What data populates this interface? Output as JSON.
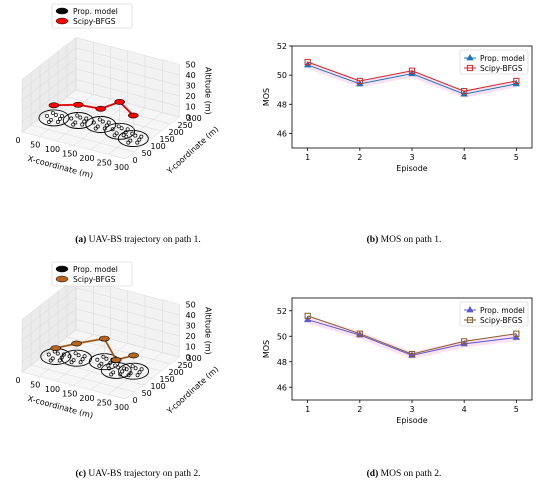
{
  "chart_data": [
    {
      "type": "scatter",
      "projection": "3d",
      "caption_tag": "(a)",
      "caption": "UAV-BS trajectory on path 1.",
      "xlabel": "X-coordinate (m)",
      "ylabel": "Y-coordinate (m)",
      "zlabel": "Altitude (m)",
      "xticks": [
        "0",
        "50",
        "100",
        "150",
        "200",
        "250",
        "300"
      ],
      "yticks": [
        "0",
        "50",
        "100",
        "150",
        "200",
        "250",
        "300"
      ],
      "zticks": [
        "0",
        "10",
        "20",
        "30",
        "40",
        "50"
      ],
      "xlim": [
        0,
        300
      ],
      "ylim": [
        0,
        300
      ],
      "zlim": [
        0,
        50
      ],
      "legend": [
        {
          "name": "Prop. model",
          "color": "#000000"
        },
        {
          "name": "Scipy-BFGS",
          "color": "#ff0000"
        }
      ],
      "legend_position": "top",
      "uav_path": [
        {
          "x": 30,
          "y": 120,
          "z": 12
        },
        {
          "x": 90,
          "y": 140,
          "z": 15
        },
        {
          "x": 150,
          "y": 150,
          "z": 15
        },
        {
          "x": 210,
          "y": 140,
          "z": 28
        },
        {
          "x": 260,
          "y": 120,
          "z": 22
        }
      ],
      "clusters": [
        {
          "x": 30,
          "y": 120
        },
        {
          "x": 90,
          "y": 140
        },
        {
          "x": 150,
          "y": 150
        },
        {
          "x": 210,
          "y": 140
        },
        {
          "x": 260,
          "y": 120
        }
      ]
    },
    {
      "type": "line",
      "caption_tag": "(b)",
      "caption": "MOS on path 1.",
      "xlabel": "Episode",
      "ylabel": "MOS",
      "x": [
        1,
        2,
        3,
        4,
        5
      ],
      "xticks": [
        "1",
        "2",
        "3",
        "4",
        "5"
      ],
      "yticks": [
        "46",
        "48",
        "50",
        "52"
      ],
      "ylim": [
        45,
        52
      ],
      "legend_position": "top-right",
      "series": [
        {
          "name": "Prop. model",
          "values": [
            50.7,
            49.4,
            50.1,
            48.7,
            49.4
          ],
          "color": "#1f77b4",
          "marker": "triangle"
        },
        {
          "name": "Scipy-BFGS",
          "values": [
            50.9,
            49.6,
            50.3,
            48.9,
            49.6
          ],
          "color": "#d62728",
          "marker": "square"
        }
      ]
    },
    {
      "type": "scatter",
      "projection": "3d",
      "caption_tag": "(c)",
      "caption": "UAV-BS trajectory on path 2.",
      "xlabel": "X-coordinate (m)",
      "ylabel": "Y-coordinate (m)",
      "zlabel": "Altitude (m)",
      "xticks": [
        "0",
        "50",
        "100",
        "150",
        "200",
        "250",
        "300"
      ],
      "yticks": [
        "0",
        "50",
        "100",
        "150",
        "200",
        "250",
        "300"
      ],
      "zticks": [
        "0",
        "10",
        "20",
        "30",
        "40",
        "50"
      ],
      "xlim": [
        0,
        300
      ],
      "ylim": [
        0,
        300
      ],
      "zlim": [
        0,
        50
      ],
      "legend": [
        {
          "name": "Prop. model",
          "color": "#000000"
        },
        {
          "name": "Scipy-BFGS",
          "color": "#b5651d"
        }
      ],
      "legend_position": "top",
      "uav_path": [
        {
          "x": 30,
          "y": 130,
          "z": 8
        },
        {
          "x": 80,
          "y": 150,
          "z": 14
        },
        {
          "x": 150,
          "y": 170,
          "z": 22
        },
        {
          "x": 200,
          "y": 140,
          "z": 10
        },
        {
          "x": 240,
          "y": 160,
          "z": 15
        }
      ],
      "clusters": [
        {
          "x": 30,
          "y": 130
        },
        {
          "x": 80,
          "y": 150
        },
        {
          "x": 150,
          "y": 170
        },
        {
          "x": 200,
          "y": 140
        },
        {
          "x": 240,
          "y": 160
        }
      ]
    },
    {
      "type": "line",
      "caption_tag": "(d)",
      "caption": "MOS on path 2.",
      "xlabel": "Episode",
      "ylabel": "MOS",
      "x": [
        1,
        2,
        3,
        4,
        5
      ],
      "xticks": [
        "1",
        "2",
        "3",
        "4",
        "5"
      ],
      "yticks": [
        "46",
        "48",
        "50",
        "52"
      ],
      "ylim": [
        45,
        53
      ],
      "legend_position": "top-right",
      "series": [
        {
          "name": "Prop. model",
          "values": [
            51.3,
            50.1,
            48.5,
            49.4,
            49.9
          ],
          "color": "#5a5acd",
          "marker": "triangle"
        },
        {
          "name": "Scipy-BFGS",
          "values": [
            51.6,
            50.2,
            48.6,
            49.6,
            50.2
          ],
          "color": "#8b5a2b",
          "marker": "square"
        }
      ]
    }
  ]
}
